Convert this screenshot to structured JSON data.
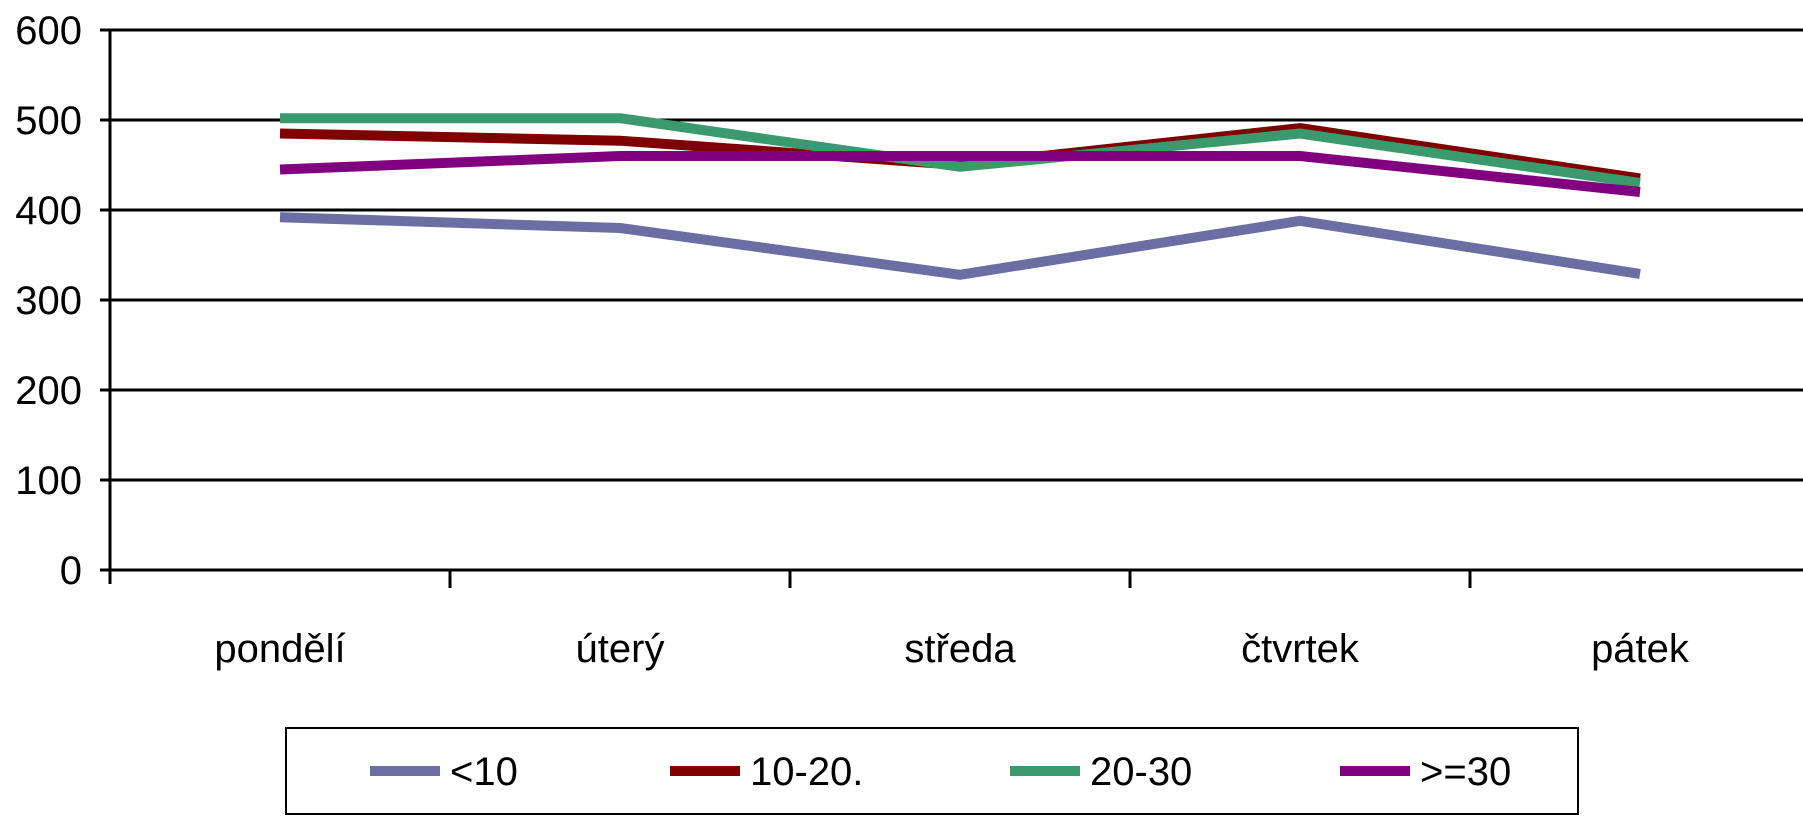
{
  "chart_data": {
    "type": "line",
    "title": "",
    "xlabel": "",
    "ylabel": "",
    "categories": [
      "pondělí",
      "úterý",
      "středa",
      "čtvrtek",
      "pátek"
    ],
    "ylim": [
      0,
      600
    ],
    "yticks": [
      "0",
      "100",
      "200",
      "300",
      "400",
      "500",
      "600"
    ],
    "grid": true,
    "legend_position": "bottom",
    "series": [
      {
        "name": "<10",
        "color": "#6b6ea3",
        "values": [
          392,
          380,
          328,
          388,
          329
        ]
      },
      {
        "name": "10-20.",
        "color": "#800000",
        "values": [
          485,
          477,
          450,
          491,
          435
        ]
      },
      {
        "name": "20-30",
        "color": "#3a9a6e",
        "values": [
          502,
          502,
          448,
          485,
          430
        ]
      },
      {
        "name": ">=30",
        "color": "#800080",
        "values": [
          445,
          460,
          460,
          460,
          420
        ]
      }
    ]
  }
}
